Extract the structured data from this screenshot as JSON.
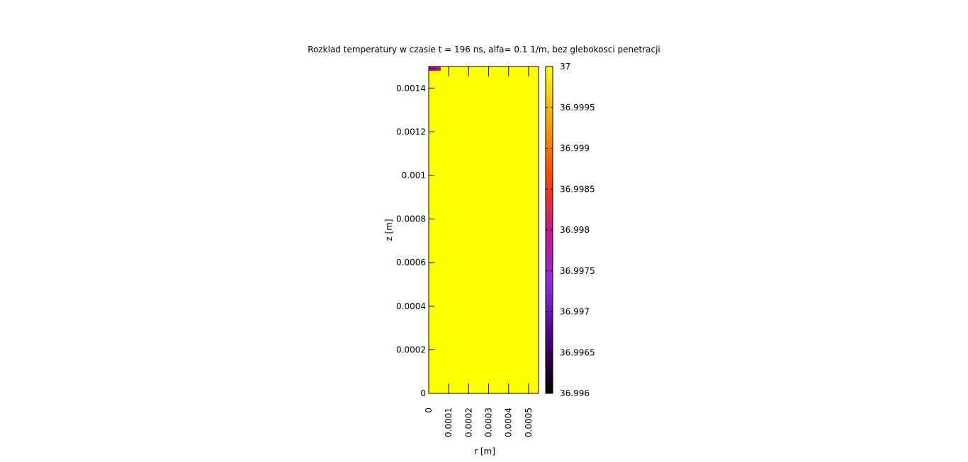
{
  "chart_data": {
    "type": "heatmap",
    "title": "Rozklad temperatury w czasie t = 196 ns, alfa= 0.1 1/m, bez glebokosci penetracji",
    "xlabel": "r [m]",
    "ylabel": "z [m]",
    "xlim": [
      0,
      0.00055
    ],
    "ylim": [
      0,
      0.0015
    ],
    "x_ticks": [
      "0",
      "0.0001",
      "0.0002",
      "0.0003",
      "0.0004",
      "0.0005"
    ],
    "y_ticks": [
      "0",
      "0.0002",
      "0.0004",
      "0.0006",
      "0.0008",
      "0.001",
      "0.0012",
      "0.0014"
    ],
    "colorbar": {
      "range": [
        36.996,
        37
      ],
      "ticks": [
        "37",
        "36.9995",
        "36.999",
        "36.9985",
        "36.998",
        "36.9975",
        "36.997",
        "36.9965",
        "36.996"
      ],
      "colormap": [
        "#000000",
        "#4b0082",
        "#8a2be2",
        "#c71585",
        "#ff4500",
        "#ffa500",
        "#ffff00"
      ]
    },
    "field": {
      "background_value": 37,
      "background_color": "#ffff00",
      "hotspot": {
        "r_max": 6e-05,
        "z_min": 0.00148,
        "value": 36.9975,
        "color": "#c71585"
      }
    }
  }
}
